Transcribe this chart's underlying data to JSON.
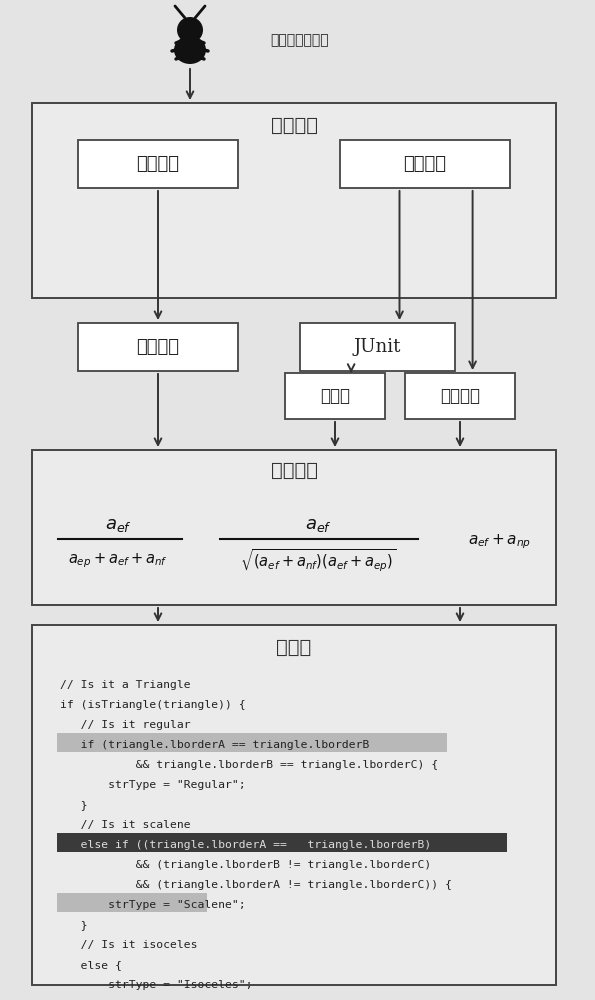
{
  "bg_color": "#e4e4e4",
  "box_face": "#ffffff",
  "box_face_outer": "#eeeeee",
  "box_edge": "#444444",
  "bug_label": "包含缺陷的程序",
  "title1": "分析工具",
  "static_label": "静态分析",
  "dynamic_label": "动态分析",
  "cfg_label": "控制流图",
  "junit_label": "JUnit",
  "coverage_label": "覆盖率",
  "exec_label": "执行结果",
  "spectrum_label": "频谱分析",
  "visual_label": "可视化",
  "code_lines": [
    "// Is it a Triangle",
    "if (isTriangle(triangle)) {",
    "   // Is it regular",
    "   if (triangle.lborderA == triangle.lborderB",
    "           && triangle.lborderB == triangle.lborderC) {",
    "       strType = \"Regular\";",
    "   }",
    "   // Is it scalene",
    "   else if ((triangle.lborderA ==   triangle.lborderB)",
    "           && (triangle.lborderB != triangle.lborderC)",
    "           && (triangle.lborderA != triangle.lborderC)) {",
    "       strType = \"Scalene\";",
    "   }",
    "   // Is it isoceles",
    "   else {",
    "       strType = \"Isoceles\";",
    "   }",
    "},"
  ],
  "highlight_line_dark": 8,
  "highlight_line_light1": 3,
  "highlight_line_light2": 11
}
